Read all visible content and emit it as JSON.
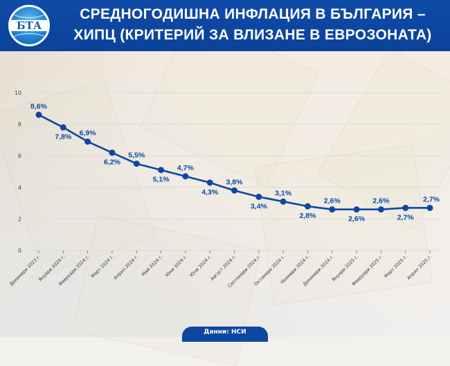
{
  "header": {
    "logo_text": "БТА",
    "title_line1": "СРЕДНОГОДИШНА ИНФЛАЦИЯ В БЪЛГАРИЯ –",
    "title_line2": "ХИПЦ (КРИТЕРИЙ ЗА ВЛИЗАНЕ В ЕВРОЗОНАТА)"
  },
  "footer": {
    "source": "Данни: НСИ"
  },
  "colors": {
    "header_bg": "#0d47a1",
    "line": "#0d47a1",
    "label": "#0d47a1",
    "grid": "#d9d9d9"
  },
  "chart_data": {
    "type": "line",
    "title": "Средногодишна инфлация в България – ХИПЦ (критерий за влизане в еврозоната)",
    "xlabel": "",
    "ylabel": "",
    "ylim": [
      0,
      10
    ],
    "yticks": [
      0,
      2,
      4,
      6,
      8,
      10
    ],
    "grid": true,
    "legend": "none",
    "categories": [
      "Декември 2023 г.",
      "Януари 2024 г.",
      "Февруари 2024 г.",
      "Март 2024 г.",
      "Април 2024 г.",
      "Май 2024 г.",
      "Юни 2024 г.",
      "Юли 2024 г.",
      "Август 2024 г.",
      "Септември 2024 г.",
      "Октомври 2024 г.",
      "Ноември 2024 г.",
      "Декември 2024 г.",
      "Януари 2025 г.",
      "Февруари 2025 г.",
      "Март 2025 г.",
      "Април 2025 г."
    ],
    "values": [
      8.6,
      7.8,
      6.9,
      6.2,
      5.5,
      5.1,
      4.7,
      4.3,
      3.8,
      3.4,
      3.1,
      2.8,
      2.6,
      2.6,
      2.6,
      2.7,
      2.7
    ],
    "data_labels": [
      "8,6%",
      "7,8%",
      "6,9%",
      "6,2%",
      "5,5%",
      "5,1%",
      "4,7%",
      "4,3%",
      "3,8%",
      "3,4%",
      "3,1%",
      "2,8%",
      "2,6%",
      "2,6%",
      "2,6%",
      "2,7%",
      "2,7%"
    ],
    "label_positions": [
      "above",
      "below",
      "above",
      "below",
      "above",
      "below",
      "above",
      "below",
      "above",
      "below",
      "above",
      "below",
      "above",
      "below",
      "above",
      "below",
      "above"
    ],
    "source": "Данни: НСИ"
  }
}
